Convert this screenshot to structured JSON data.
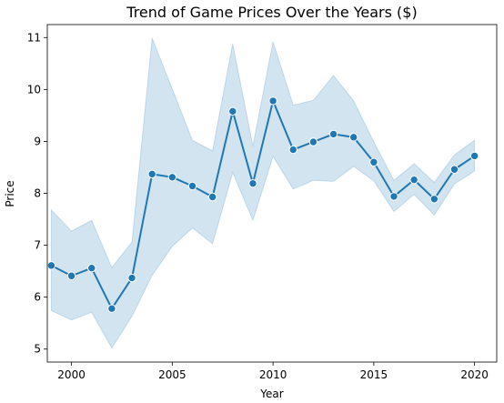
{
  "chart_data": {
    "type": "line",
    "title": "Trend of Game Prices Over the Years ($)",
    "xlabel": "Year",
    "ylabel": "Price",
    "xlim": [
      1998.8,
      2021.1
    ],
    "ylim": [
      4.75,
      11.25
    ],
    "x_ticks": [
      2000,
      2005,
      2010,
      2015,
      2020
    ],
    "y_ticks": [
      5,
      6,
      7,
      8,
      9,
      10,
      11
    ],
    "grid": false,
    "legend": "none",
    "colors": {
      "line": "#1f77b4",
      "band": "#1f77b4",
      "band_opacity": 0.2
    },
    "x": [
      1999,
      2000,
      2001,
      2002,
      2003,
      2004,
      2005,
      2006,
      2007,
      2008,
      2009,
      2010,
      2011,
      2012,
      2013,
      2014,
      2015,
      2016,
      2017,
      2018,
      2019,
      2020
    ],
    "values": [
      6.61,
      6.41,
      6.56,
      5.78,
      6.37,
      8.37,
      8.31,
      8.14,
      7.93,
      9.58,
      8.19,
      9.78,
      8.84,
      8.99,
      9.14,
      9.08,
      8.6,
      7.94,
      8.26,
      7.89,
      8.46,
      8.72
    ],
    "ci_low": [
      5.74,
      5.56,
      5.71,
      5.02,
      5.63,
      6.42,
      6.98,
      7.33,
      7.03,
      8.4,
      7.48,
      8.71,
      8.08,
      8.25,
      8.23,
      8.52,
      8.24,
      7.65,
      7.98,
      7.58,
      8.18,
      8.43
    ],
    "ci_high": [
      7.68,
      7.27,
      7.48,
      6.57,
      7.06,
      10.99,
      10.01,
      9.02,
      8.82,
      10.88,
      8.91,
      10.92,
      9.7,
      9.79,
      10.27,
      9.78,
      8.99,
      8.25,
      8.57,
      8.21,
      8.74,
      9.02
    ]
  }
}
